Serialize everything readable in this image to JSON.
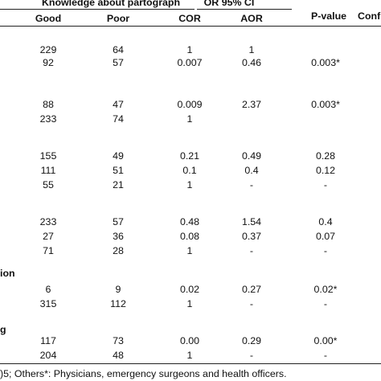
{
  "table": {
    "header": {
      "group_knowledge": "Knowledge about partograph",
      "group_or": "OR 95% CI",
      "p_value": "P-value",
      "confidence_cut": "Conf",
      "good": "Good",
      "poor": "Poor",
      "cor": "COR",
      "aor": "AOR"
    },
    "row_labels": {
      "profession_cut": "ion",
      "training_cut": "g"
    },
    "rows": [
      {
        "good": "229",
        "poor": "64",
        "cor": "1",
        "aor": "1",
        "p": ""
      },
      {
        "good": "92",
        "poor": "57",
        "cor": "0.007",
        "aor": "0.46",
        "p": "0.003*"
      },
      {
        "good": "88",
        "poor": "47",
        "cor": "0.009",
        "aor": "2.37",
        "p": "0.003*"
      },
      {
        "good": "233",
        "poor": "74",
        "cor": "1",
        "aor": "",
        "p": ""
      },
      {
        "good": "155",
        "poor": "49",
        "cor": "0.21",
        "aor": "0.49",
        "p": "0.28"
      },
      {
        "good": "111",
        "poor": "51",
        "cor": "0.1",
        "aor": "0.4",
        "p": "0.12"
      },
      {
        "good": "55",
        "poor": "21",
        "cor": "1",
        "aor": "-",
        "p": "-"
      },
      {
        "good": "233",
        "poor": "57",
        "cor": "0.48",
        "aor": "1.54",
        "p": "0.4"
      },
      {
        "good": "27",
        "poor": "36",
        "cor": "0.08",
        "aor": "0.37",
        "p": "0.07"
      },
      {
        "good": "71",
        "poor": "28",
        "cor": "1",
        "aor": "-",
        "p": "-"
      },
      {
        "good": "6",
        "poor": "9",
        "cor": "0.02",
        "aor": "0.27",
        "p": "0.02*"
      },
      {
        "good": "315",
        "poor": "112",
        "cor": "1",
        "aor": "-",
        "p": "-"
      },
      {
        "good": "117",
        "poor": "73",
        "cor": "0.00",
        "aor": "0.29",
        "p": "0.00*"
      },
      {
        "good": "204",
        "poor": "48",
        "cor": "1",
        "aor": "-",
        "p": "-"
      }
    ],
    "footnote": ")5; Others*: Physicians, emergency surgeons and health officers."
  }
}
